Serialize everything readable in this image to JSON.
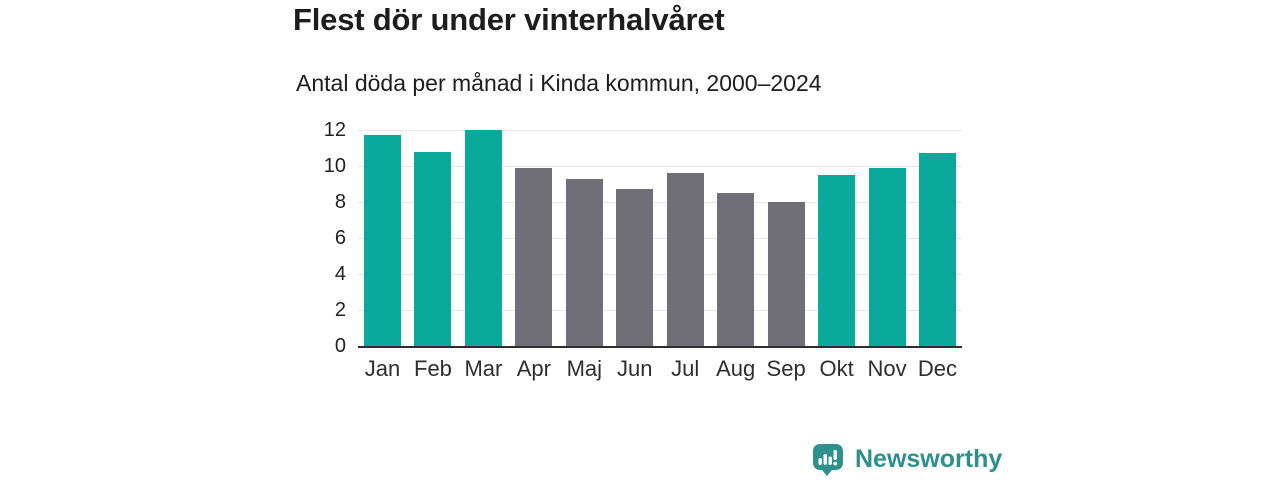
{
  "chart": {
    "title": "Flest dör under vinterhalvåret",
    "subtitle": "Antal döda per månad i Kinda kommun, 2000–2024"
  },
  "chart_data": {
    "type": "bar",
    "categories": [
      "Jan",
      "Feb",
      "Mar",
      "Apr",
      "Maj",
      "Jun",
      "Jul",
      "Aug",
      "Sep",
      "Okt",
      "Nov",
      "Dec"
    ],
    "values": [
      11.7,
      10.8,
      12.0,
      9.9,
      9.3,
      8.7,
      9.6,
      8.5,
      8.0,
      9.5,
      9.9,
      10.7
    ],
    "colors": [
      "#0ba89c",
      "#0ba89c",
      "#0ba89c",
      "#706e77",
      "#706e77",
      "#706e77",
      "#706e77",
      "#706e77",
      "#706e77",
      "#0ba89c",
      "#0ba89c",
      "#0ba89c"
    ],
    "title": "Flest dör under vinterhalvåret",
    "subtitle": "Antal döda per månad i Kinda kommun, 2000–2024",
    "xlabel": "",
    "ylabel": "",
    "ylim": [
      0,
      12
    ],
    "yticks": [
      12,
      10,
      8,
      6,
      4,
      2,
      0
    ],
    "grid": true,
    "legend": "none",
    "highlight_color": "#0ba89c",
    "base_color": "#706e77"
  },
  "branding": {
    "logo_text": "Newsworthy",
    "logo_icon": "bar-chart-speech-bubble-icon",
    "brand_color": "#2f8f8c"
  },
  "style_colors": {
    "background": "#ffffff",
    "gridline": "#e6e6ec",
    "axis_line": "#2e2e2e",
    "text": "#1d1d1d"
  }
}
